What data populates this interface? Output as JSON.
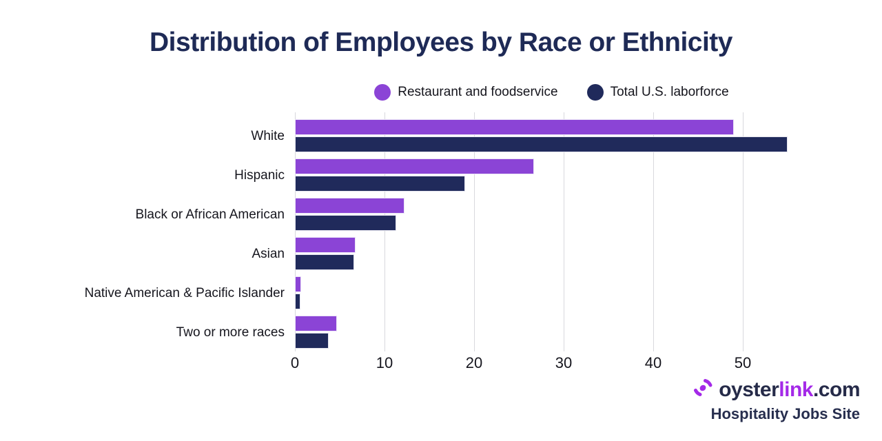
{
  "title": "Distribution of Employees by Race or Ethnicity",
  "legend": [
    {
      "label": "Restaurant and foodservice",
      "color": "#8b44d6"
    },
    {
      "label": "Total U.S. laborforce",
      "color": "#202a5b"
    }
  ],
  "chart_data": {
    "type": "bar",
    "orientation": "horizontal",
    "title": "Distribution of Employees by Race or Ethnicity",
    "categories": [
      "White",
      "Hispanic",
      "Black or African American",
      "Asian",
      "Native American & Pacific Islander",
      "Two or more races"
    ],
    "series": [
      {
        "name": "Restaurant and foodservice",
        "color": "#8b44d6",
        "values": [
          49,
          26.7,
          12.2,
          6.8,
          0.7,
          4.7
        ]
      },
      {
        "name": "Total U.S. laborforce",
        "color": "#202a5b",
        "values": [
          55,
          19,
          11.3,
          6.6,
          0.6,
          3.8
        ]
      }
    ],
    "x_ticks": [
      0,
      10,
      20,
      30,
      40,
      50
    ],
    "xlim": [
      0,
      57.5
    ],
    "xlabel": "",
    "ylabel": "",
    "grid": true,
    "legend_position": "top",
    "value_unit": "percent"
  },
  "branding": {
    "logo_oyster": "oyster",
    "logo_link": "link",
    "logo_domain": ".com",
    "tagline": "Hospitality Jobs Site"
  },
  "colors": {
    "title_navy": "#1e2a56",
    "bar_purple": "#8b44d6",
    "bar_navy": "#202a5b",
    "gridline": "#d8d8dd",
    "text_dark": "#15151d",
    "logo_purple": "#a429e8",
    "logo_navy": "#262b49"
  }
}
